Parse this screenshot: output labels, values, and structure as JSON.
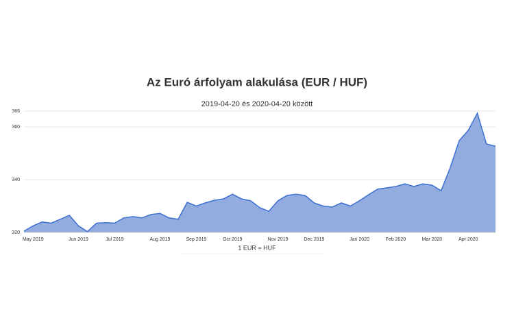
{
  "chart_data": {
    "type": "area",
    "title": "Az Euró árfolyam alakulása (EUR / HUF)",
    "subtitle": "2019-04-20 és 2020-04-20 között",
    "categories": [
      null,
      "May 2019",
      null,
      null,
      null,
      null,
      "Jun 2019",
      null,
      null,
      null,
      "Jul 2019",
      null,
      null,
      null,
      null,
      "Aug 2019",
      null,
      null,
      null,
      "Sep 2019",
      null,
      null,
      null,
      "Oct 2019",
      null,
      null,
      null,
      null,
      "Nov 2019",
      null,
      null,
      null,
      "Dec 2019",
      null,
      null,
      null,
      null,
      "Jan 2020",
      null,
      null,
      null,
      "Feb 2020",
      null,
      null,
      null,
      "Mar 2020",
      null,
      null,
      null,
      "Apr 2020",
      null,
      null,
      null
    ],
    "series": [
      {
        "name": "1 EUR = HUF",
        "color": "#3b6fd0",
        "fill": "#93acdf",
        "values": [
          320.5,
          322.5,
          324,
          323.5,
          325,
          326.5,
          322.5,
          320.3,
          323.5,
          323.7,
          323.5,
          325.5,
          326,
          325.5,
          326.8,
          327.2,
          325.5,
          325,
          331.4,
          330,
          331.2,
          332.2,
          332.7,
          334.5,
          332.7,
          332,
          329.4,
          328,
          332,
          334,
          334.5,
          334,
          331.2,
          330,
          329.6,
          331.2,
          330,
          332,
          334.3,
          336.4,
          336.9,
          337.4,
          338.4,
          337.4,
          338.4,
          337.9,
          335.8,
          344.4,
          354.8,
          358.7,
          365.2,
          353.5,
          352.7
        ]
      }
    ],
    "ylim": [
      320,
      366
    ],
    "yticks": [
      320,
      340,
      360,
      366
    ],
    "grid": true
  }
}
